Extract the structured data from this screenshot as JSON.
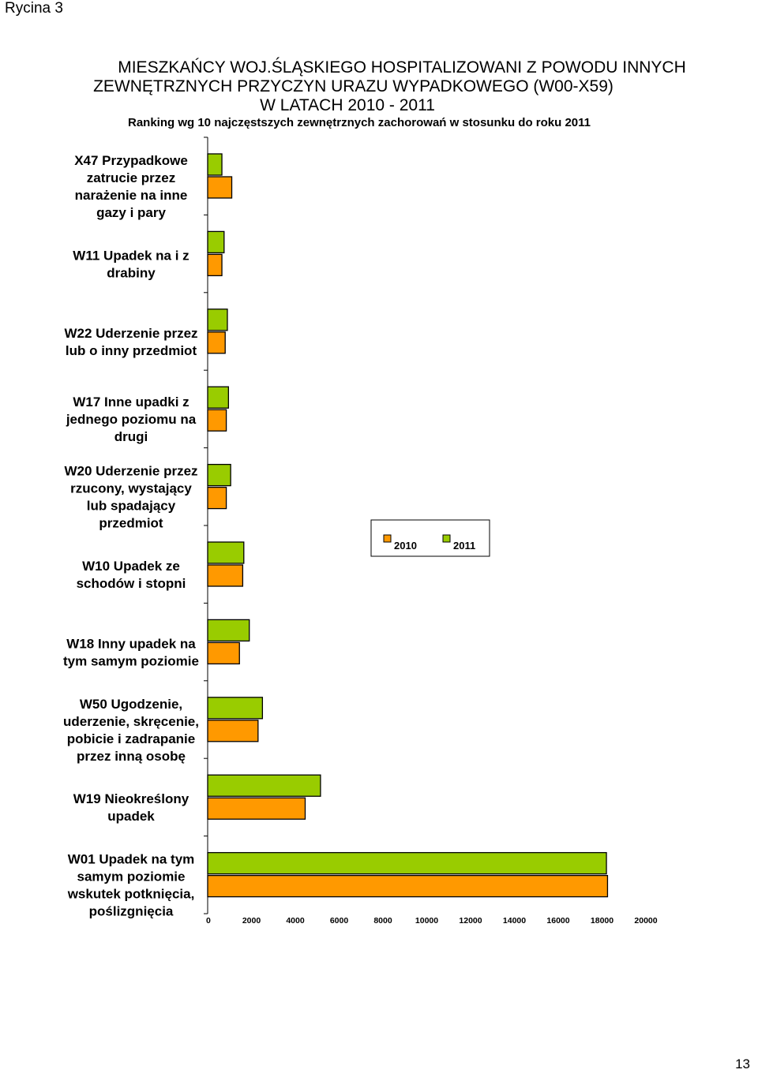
{
  "figure_label": "Rycina  3",
  "page_number": "13",
  "chart_data": {
    "type": "bar",
    "orientation": "horizontal",
    "title_lines": [
      "MIESZKAŃCY WOJ.ŚLĄSKIEGO HOSPITALIZOWANI Z POWODU INNYCH",
      "ZEWNĘTRZNYCH PRZYCZYN URAZU WYPADKOWEGO   (W00-X59)",
      "W LATACH 2010 - 2011"
    ],
    "subtitle": "Ranking  wg 10 najczęstszych zewnętrznych zachorowań w stosunku do roku 2011",
    "categories": [
      [
        "X47 Przypadkowe",
        "zatrucie przez",
        "narażenie na inne",
        "gazy i pary"
      ],
      [
        "W11 Upadek na i z",
        "drabiny"
      ],
      [
        "W22 Uderzenie przez",
        "lub o inny przedmiot"
      ],
      [
        "W17 Inne upadki z",
        "jednego poziomu na",
        "drugi"
      ],
      [
        "W20 Uderzenie przez",
        "rzucony, wystający",
        "lub spadający",
        "przedmiot"
      ],
      [
        "W10 Upadek ze",
        "schodów i stopni"
      ],
      [
        "W18 Inny upadek na",
        "tym samym poziomie"
      ],
      [
        "W50 Ugodzenie,",
        "uderzenie, skręcenie,",
        "pobicie i zadrapanie",
        "przez inną osobę"
      ],
      [
        "W19 Nieokreślony",
        "upadek"
      ],
      [
        "W01 Upadek na tym",
        "samym poziomie",
        "wskutek potknięcia,",
        "poślizgnięcia"
      ]
    ],
    "series": [
      {
        "name": "2010",
        "color": "#FF9900",
        "values": [
          1100,
          650,
          800,
          850,
          850,
          1600,
          1450,
          2300,
          4450,
          18250
        ]
      },
      {
        "name": "2011",
        "color": "#99CC00",
        "values": [
          650,
          750,
          900,
          950,
          1050,
          1650,
          1900,
          2500,
          5150,
          18200
        ]
      }
    ],
    "x_ticks": [
      "0",
      "2000",
      "4000",
      "6000",
      "8000",
      "10000",
      "12000",
      "14000",
      "16000",
      "18000",
      "20000"
    ],
    "xlim": [
      0,
      20000
    ],
    "grid": false,
    "legend_position": "right-middle"
  }
}
